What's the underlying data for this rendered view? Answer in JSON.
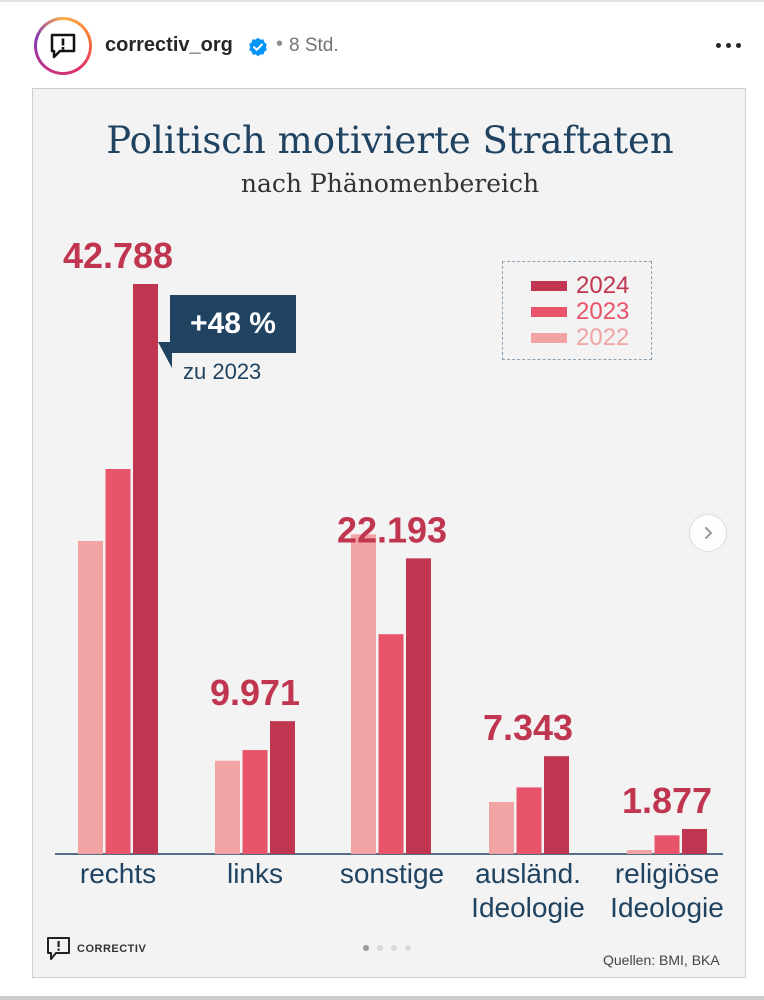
{
  "post": {
    "username": "correctiv_org",
    "time": "8 Std.",
    "separator": "•"
  },
  "icons": {
    "avatar": "correctiv-logo-icon",
    "verified": "verified-badge-icon",
    "more": "more-options-icon",
    "next": "chevron-right-icon"
  },
  "colors": {
    "y2024": "#c0354f",
    "y2023": "#e8546a",
    "y2022": "#f2a3a3",
    "title": "#1f4360",
    "value": "#c0354f"
  },
  "chart_data": {
    "type": "bar",
    "title": "Politisch motivierte Straftaten",
    "subtitle": "nach Phänomenbereich",
    "categories": [
      [
        "rechts"
      ],
      [
        "links"
      ],
      [
        "sonstige"
      ],
      [
        "ausländ.",
        "Ideologie"
      ],
      [
        "religiöse",
        "Ideologie"
      ]
    ],
    "series": [
      {
        "name": "2022",
        "values": [
          23500,
          7000,
          24000,
          3900,
          300
        ]
      },
      {
        "name": "2023",
        "values": [
          28900,
          7800,
          16500,
          5000,
          1400
        ]
      },
      {
        "name": "2024",
        "values": [
          42788,
          9971,
          22193,
          7343,
          1877
        ]
      }
    ],
    "value_labels": [
      "42.788",
      "9.971",
      "22.193",
      "7.343",
      "1.877"
    ],
    "ylim": [
      0,
      42788
    ],
    "legend": [
      "2024",
      "2023",
      "2022"
    ],
    "annotation": {
      "text": "+48 %",
      "sub": "zu 2023"
    },
    "source": "Quellen: BMI, BKA",
    "brand": "CORRECTIV"
  }
}
